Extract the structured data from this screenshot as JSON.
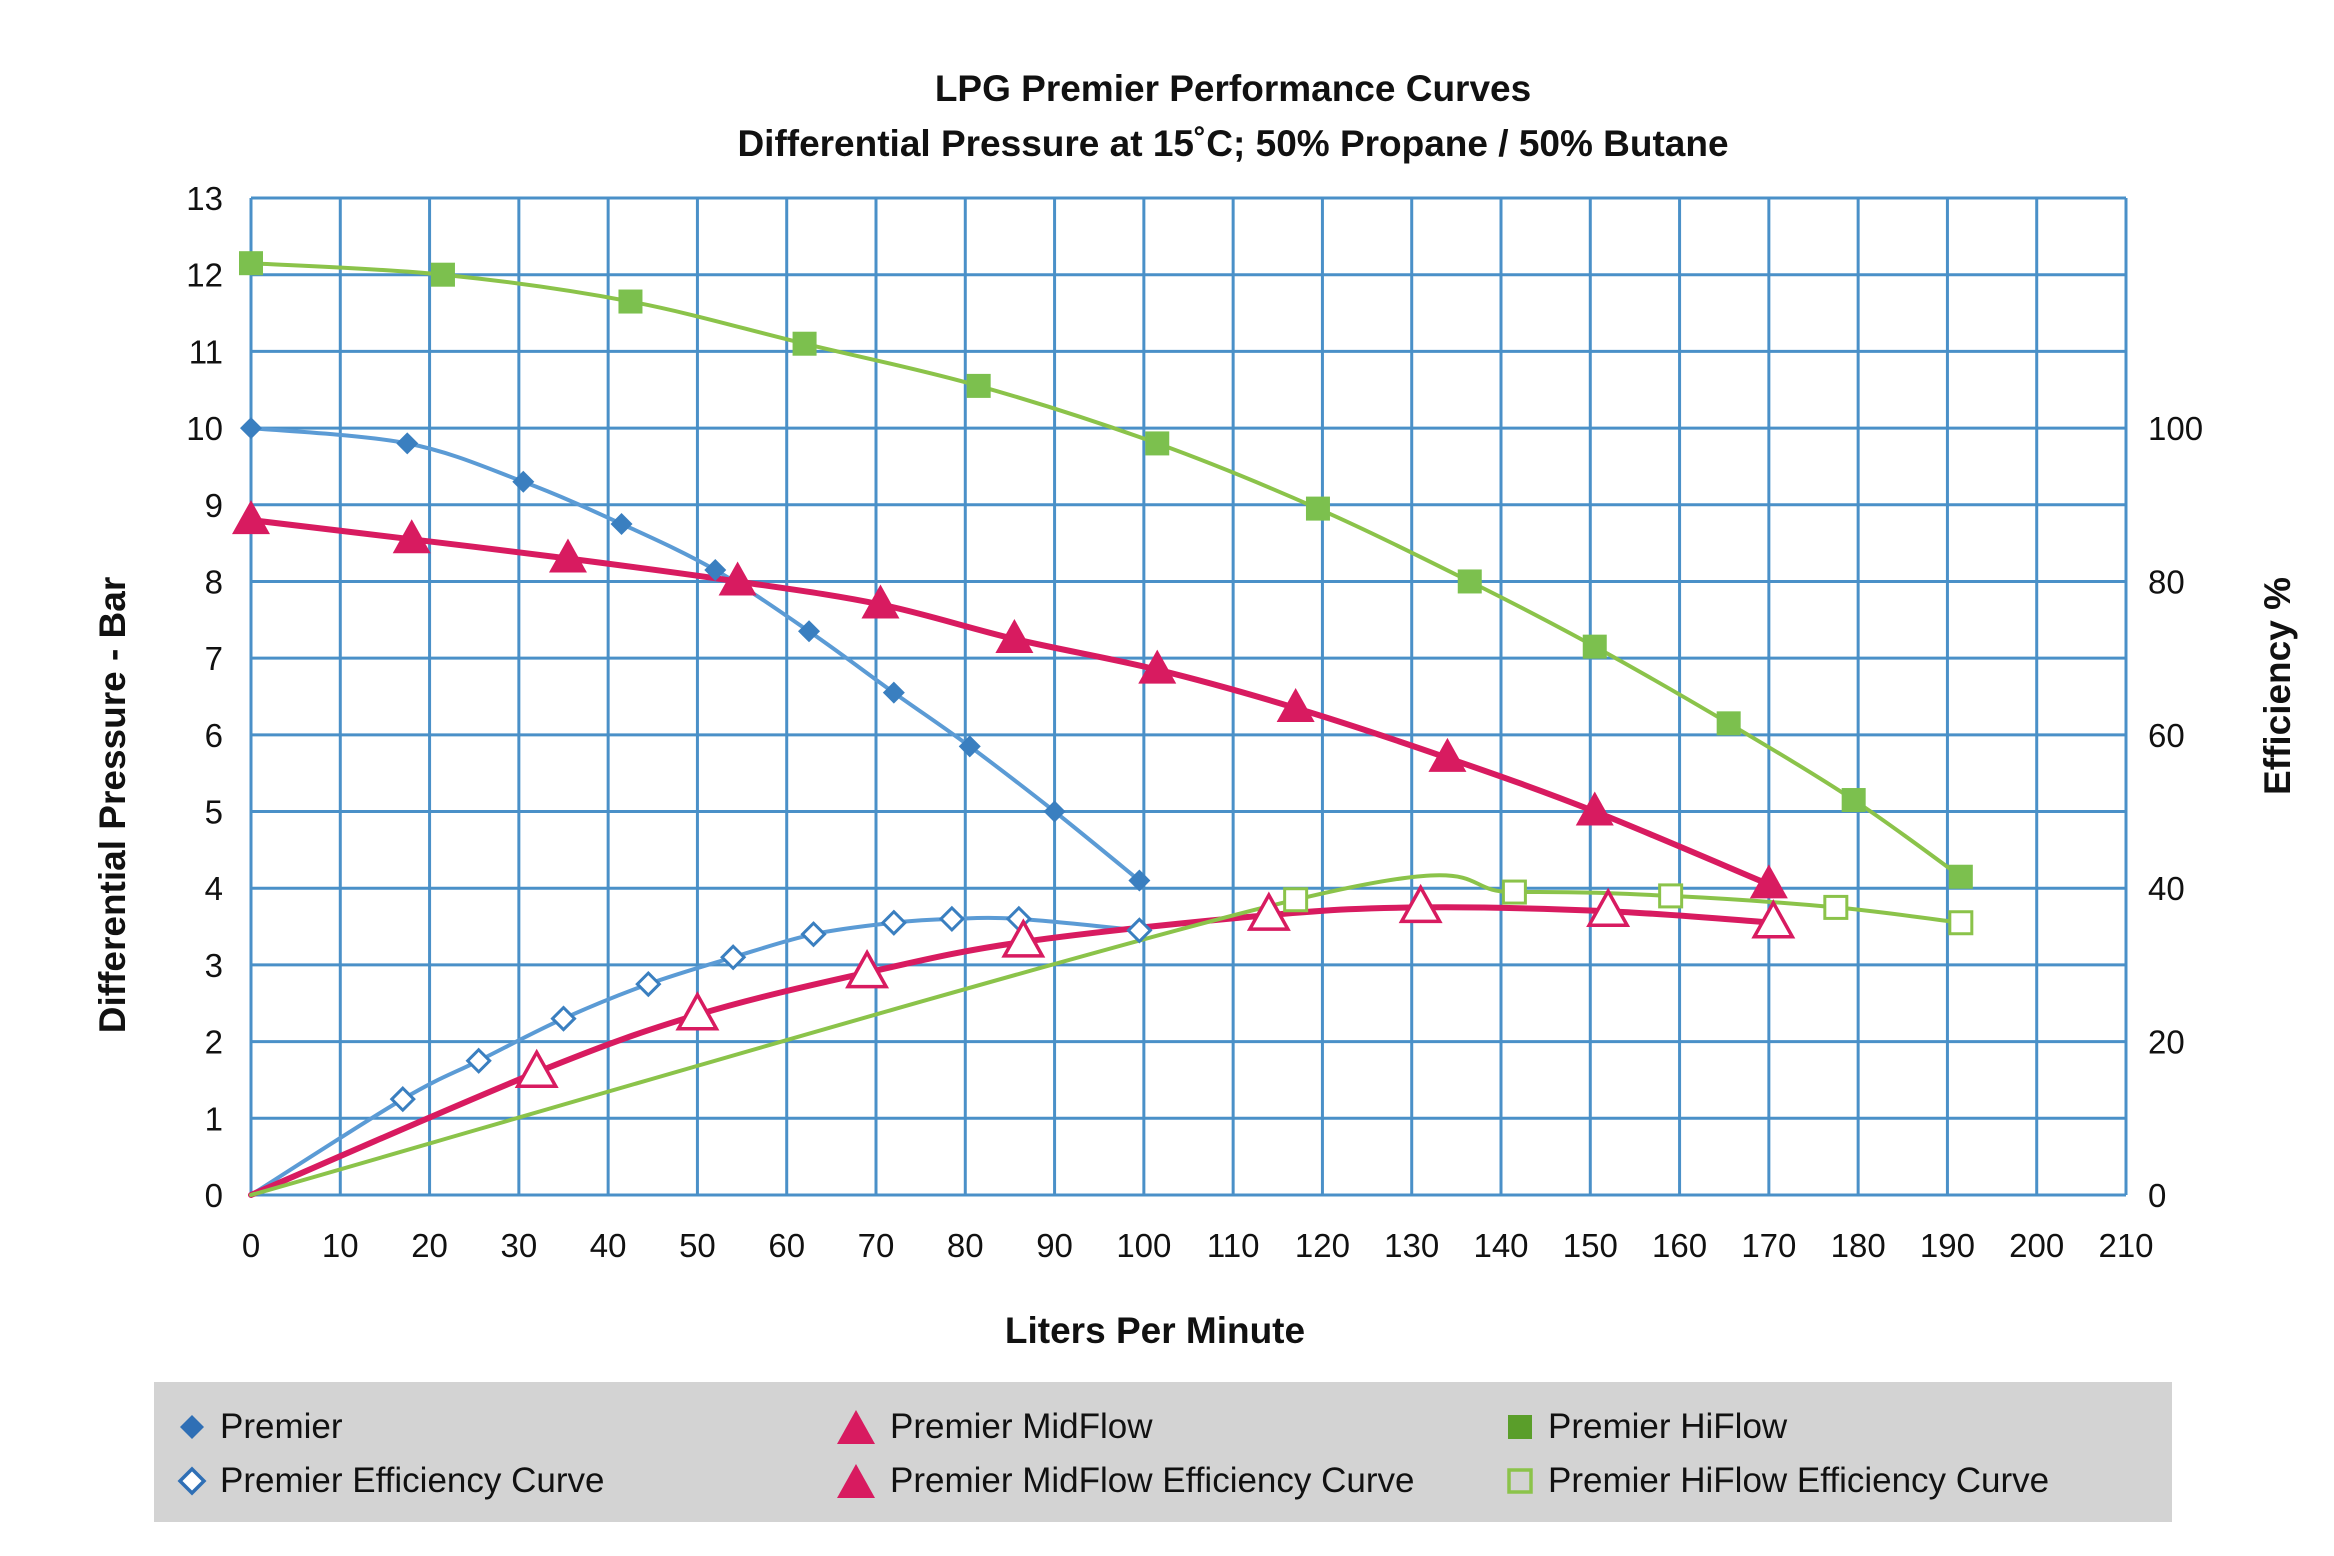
{
  "colors": {
    "grid": "#4a90c8",
    "premier": "#5b9bd5",
    "premier_marker": "#3a7fc0",
    "midflow": "#d81b60",
    "hiflow": "#8bc34a",
    "hiflow_marker": "#7cc04e",
    "legend_bg": "#d3d3d3"
  },
  "chart_data": {
    "type": "line",
    "title": "LPG Premier Performance Curves",
    "subtitle": "Differential Pressure at 15˚C; 50% Propane / 50% Butane",
    "xlabel": "Liters Per Minute",
    "ylabel": "Differential Pressure - Bar",
    "y2label": "Efficiency %",
    "xlim": [
      0,
      210
    ],
    "ylim": [
      0,
      13
    ],
    "y2lim": [
      0,
      130
    ],
    "x_ticks": [
      "0",
      "10",
      "20",
      "30",
      "40",
      "50",
      "60",
      "70",
      "80",
      "90",
      "100",
      "110",
      "120",
      "130",
      "140",
      "150",
      "160",
      "170",
      "180",
      "190",
      "200",
      "210"
    ],
    "y_ticks": [
      "0",
      "1",
      "2",
      "3",
      "4",
      "5",
      "6",
      "7",
      "8",
      "9",
      "10",
      "11",
      "12",
      "13"
    ],
    "y2_ticks": [
      "0",
      "20",
      "40",
      "60",
      "80",
      "100"
    ],
    "grid": true,
    "legend_position": "bottom",
    "series": [
      {
        "name": "Premier",
        "axis": "pressure",
        "marker": "diamond-filled",
        "color": "premier",
        "points": [
          [
            0,
            10.0
          ],
          [
            17.5,
            9.8
          ],
          [
            30.5,
            9.3
          ],
          [
            41.5,
            8.75
          ],
          [
            52,
            8.15
          ],
          [
            62.5,
            7.35
          ],
          [
            72,
            6.55
          ],
          [
            80.5,
            5.85
          ],
          [
            90,
            5.0
          ],
          [
            99.5,
            4.1
          ]
        ]
      },
      {
        "name": "Premier Efficiency Curve",
        "axis": "efficiency",
        "marker": "diamond-open",
        "color": "premier",
        "points": [
          [
            0,
            0
          ],
          [
            17,
            12.5
          ],
          [
            25.5,
            17.5
          ],
          [
            35,
            23
          ],
          [
            44.5,
            27.5
          ],
          [
            54,
            31
          ],
          [
            63,
            34
          ],
          [
            72,
            35.5
          ],
          [
            78.5,
            36
          ],
          [
            86,
            36
          ],
          [
            99.5,
            34.5
          ]
        ]
      },
      {
        "name": "Premier MidFlow",
        "axis": "pressure",
        "marker": "triangle-filled",
        "color": "midflow",
        "points": [
          [
            0,
            8.8
          ],
          [
            18,
            8.55
          ],
          [
            35.5,
            8.3
          ],
          [
            54.5,
            8.0
          ],
          [
            70.5,
            7.7
          ],
          [
            85.5,
            7.25
          ],
          [
            101.5,
            6.85
          ],
          [
            117,
            6.35
          ],
          [
            134,
            5.7
          ],
          [
            150.5,
            5.0
          ],
          [
            170,
            4.05
          ]
        ]
      },
      {
        "name": "Premier MidFlow Efficiency Curve",
        "axis": "efficiency",
        "marker": "triangle-open",
        "color": "midflow",
        "points": [
          [
            0,
            0
          ],
          [
            32,
            16
          ],
          [
            50,
            23.5
          ],
          [
            69,
            29
          ],
          [
            86.5,
            33
          ],
          [
            114,
            36.5
          ],
          [
            131,
            37.5
          ],
          [
            152,
            37
          ],
          [
            170.5,
            35.5
          ]
        ]
      },
      {
        "name": "Premier HiFlow",
        "axis": "pressure",
        "marker": "square-filled",
        "color": "hiflow",
        "points": [
          [
            0,
            12.15
          ],
          [
            21.5,
            12.0
          ],
          [
            42.5,
            11.65
          ],
          [
            62,
            11.1
          ],
          [
            81.5,
            10.55
          ],
          [
            101.5,
            9.8
          ],
          [
            119.5,
            8.95
          ],
          [
            136.5,
            8.0
          ],
          [
            150.5,
            7.15
          ],
          [
            165.5,
            6.15
          ],
          [
            179.5,
            5.15
          ],
          [
            191.5,
            4.15
          ]
        ]
      },
      {
        "name": "Premier HiFlow Efficiency Curve",
        "axis": "efficiency",
        "marker": "square-open",
        "color": "hiflow",
        "points": [
          [
            0,
            0
          ],
          [
            117,
            38.5
          ],
          [
            141.5,
            39.5
          ],
          [
            159,
            39
          ],
          [
            177.5,
            37.5
          ],
          [
            191.5,
            35.5
          ]
        ]
      }
    ]
  }
}
